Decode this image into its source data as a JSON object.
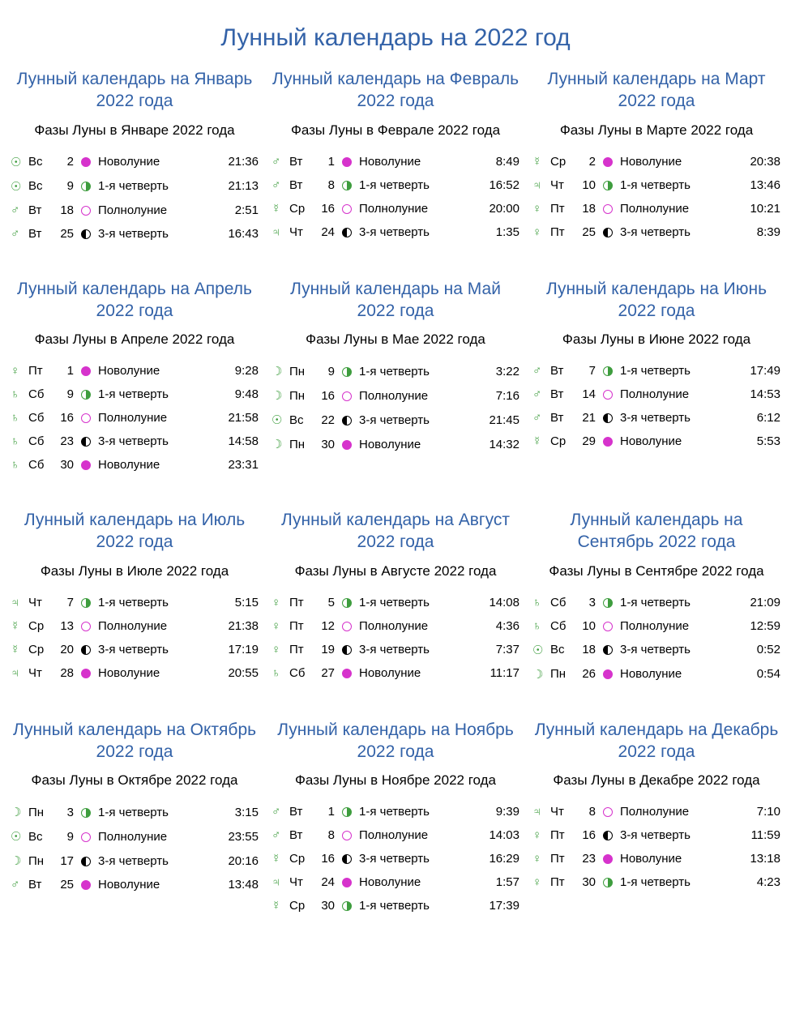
{
  "title": "Лунный календарь на 2022 год",
  "phaseKinds": {
    "new": {
      "label": "Новолуние",
      "cls": "new"
    },
    "fq": {
      "label": "1-я четверть",
      "cls": "fq"
    },
    "full": {
      "label": "Полнолуние",
      "cls": "full"
    },
    "lq": {
      "label": "3-я четверть",
      "cls": "lq"
    }
  },
  "colors": {
    "heading": "#3362a8",
    "symbol": "#3e9d3e",
    "newMoon": "#d633cc",
    "text": "#000000",
    "bg": "#ffffff"
  },
  "months": [
    {
      "title": "Лунный календарь на Январь 2022 года",
      "sub": "Фазы Луны в Январе 2022 года",
      "rows": [
        {
          "sym": "☉",
          "dow": "Вс",
          "day": "2",
          "phase": "new",
          "time": "21:36"
        },
        {
          "sym": "☉",
          "dow": "Вс",
          "day": "9",
          "phase": "fq",
          "time": "21:13"
        },
        {
          "sym": "♂",
          "dow": "Вт",
          "day": "18",
          "phase": "full",
          "time": "2:51"
        },
        {
          "sym": "♂",
          "dow": "Вт",
          "day": "25",
          "phase": "lq",
          "time": "16:43"
        }
      ]
    },
    {
      "title": "Лунный календарь на Февраль 2022 года",
      "sub": "Фазы Луны в Феврале 2022 года",
      "rows": [
        {
          "sym": "♂",
          "dow": "Вт",
          "day": "1",
          "phase": "new",
          "time": "8:49"
        },
        {
          "sym": "♂",
          "dow": "Вт",
          "day": "8",
          "phase": "fq",
          "time": "16:52"
        },
        {
          "sym": "☿",
          "dow": "Ср",
          "day": "16",
          "phase": "full",
          "time": "20:00"
        },
        {
          "sym": "♃",
          "dow": "Чт",
          "day": "24",
          "phase": "lq",
          "time": "1:35"
        }
      ]
    },
    {
      "title": "Лунный календарь на Март 2022 года",
      "sub": "Фазы Луны в Марте 2022 года",
      "rows": [
        {
          "sym": "☿",
          "dow": "Ср",
          "day": "2",
          "phase": "new",
          "time": "20:38"
        },
        {
          "sym": "♃",
          "dow": "Чт",
          "day": "10",
          "phase": "fq",
          "time": "13:46"
        },
        {
          "sym": "♀",
          "dow": "Пт",
          "day": "18",
          "phase": "full",
          "time": "10:21"
        },
        {
          "sym": "♀",
          "dow": "Пт",
          "day": "25",
          "phase": "lq",
          "time": "8:39"
        }
      ]
    },
    {
      "title": "Лунный календарь на Апрель 2022 года",
      "sub": "Фазы Луны в Апреле 2022 года",
      "rows": [
        {
          "sym": "♀",
          "dow": "Пт",
          "day": "1",
          "phase": "new",
          "time": "9:28"
        },
        {
          "sym": "♄",
          "dow": "Сб",
          "day": "9",
          "phase": "fq",
          "time": "9:48"
        },
        {
          "sym": "♄",
          "dow": "Сб",
          "day": "16",
          "phase": "full",
          "time": "21:58"
        },
        {
          "sym": "♄",
          "dow": "Сб",
          "day": "23",
          "phase": "lq",
          "time": "14:58"
        },
        {
          "sym": "♄",
          "dow": "Сб",
          "day": "30",
          "phase": "new",
          "time": "23:31"
        }
      ]
    },
    {
      "title": "Лунный календарь на Май 2022 года",
      "sub": "Фазы Луны в Мае 2022 года",
      "rows": [
        {
          "sym": "☽",
          "dow": "Пн",
          "day": "9",
          "phase": "fq",
          "time": "3:22"
        },
        {
          "sym": "☽",
          "dow": "Пн",
          "day": "16",
          "phase": "full",
          "time": "7:16"
        },
        {
          "sym": "☉",
          "dow": "Вс",
          "day": "22",
          "phase": "lq",
          "time": "21:45"
        },
        {
          "sym": "☽",
          "dow": "Пн",
          "day": "30",
          "phase": "new",
          "time": "14:32"
        }
      ]
    },
    {
      "title": "Лунный календарь на Июнь 2022 года",
      "sub": "Фазы Луны в Июне 2022 года",
      "rows": [
        {
          "sym": "♂",
          "dow": "Вт",
          "day": "7",
          "phase": "fq",
          "time": "17:49"
        },
        {
          "sym": "♂",
          "dow": "Вт",
          "day": "14",
          "phase": "full",
          "time": "14:53"
        },
        {
          "sym": "♂",
          "dow": "Вт",
          "day": "21",
          "phase": "lq",
          "time": "6:12"
        },
        {
          "sym": "☿",
          "dow": "Ср",
          "day": "29",
          "phase": "new",
          "time": "5:53"
        }
      ]
    },
    {
      "title": "Лунный календарь на Июль 2022 года",
      "sub": "Фазы Луны в Июле 2022 года",
      "rows": [
        {
          "sym": "♃",
          "dow": "Чт",
          "day": "7",
          "phase": "fq",
          "time": "5:15"
        },
        {
          "sym": "☿",
          "dow": "Ср",
          "day": "13",
          "phase": "full",
          "time": "21:38"
        },
        {
          "sym": "☿",
          "dow": "Ср",
          "day": "20",
          "phase": "lq",
          "time": "17:19"
        },
        {
          "sym": "♃",
          "dow": "Чт",
          "day": "28",
          "phase": "new",
          "time": "20:55"
        }
      ]
    },
    {
      "title": "Лунный календарь на Август 2022 года",
      "sub": "Фазы Луны в Августе 2022 года",
      "rows": [
        {
          "sym": "♀",
          "dow": "Пт",
          "day": "5",
          "phase": "fq",
          "time": "14:08"
        },
        {
          "sym": "♀",
          "dow": "Пт",
          "day": "12",
          "phase": "full",
          "time": "4:36"
        },
        {
          "sym": "♀",
          "dow": "Пт",
          "day": "19",
          "phase": "lq",
          "time": "7:37"
        },
        {
          "sym": "♄",
          "dow": "Сб",
          "day": "27",
          "phase": "new",
          "time": "11:17"
        }
      ]
    },
    {
      "title": "Лунный календарь на Сентябрь 2022 года",
      "sub": "Фазы Луны в Сентябре 2022 года",
      "rows": [
        {
          "sym": "♄",
          "dow": "Сб",
          "day": "3",
          "phase": "fq",
          "time": "21:09"
        },
        {
          "sym": "♄",
          "dow": "Сб",
          "day": "10",
          "phase": "full",
          "time": "12:59"
        },
        {
          "sym": "☉",
          "dow": "Вс",
          "day": "18",
          "phase": "lq",
          "time": "0:52"
        },
        {
          "sym": "☽",
          "dow": "Пн",
          "day": "26",
          "phase": "new",
          "time": "0:54"
        }
      ]
    },
    {
      "title": "Лунный календарь на Октябрь 2022 года",
      "sub": "Фазы Луны в Октябре 2022 года",
      "rows": [
        {
          "sym": "☽",
          "dow": "Пн",
          "day": "3",
          "phase": "fq",
          "time": "3:15"
        },
        {
          "sym": "☉",
          "dow": "Вс",
          "day": "9",
          "phase": "full",
          "time": "23:55"
        },
        {
          "sym": "☽",
          "dow": "Пн",
          "day": "17",
          "phase": "lq",
          "time": "20:16"
        },
        {
          "sym": "♂",
          "dow": "Вт",
          "day": "25",
          "phase": "new",
          "time": "13:48"
        }
      ]
    },
    {
      "title": "Лунный календарь на Ноябрь 2022 года",
      "sub": "Фазы Луны в Ноябре 2022 года",
      "rows": [
        {
          "sym": "♂",
          "dow": "Вт",
          "day": "1",
          "phase": "fq",
          "time": "9:39"
        },
        {
          "sym": "♂",
          "dow": "Вт",
          "day": "8",
          "phase": "full",
          "time": "14:03"
        },
        {
          "sym": "☿",
          "dow": "Ср",
          "day": "16",
          "phase": "lq",
          "time": "16:29"
        },
        {
          "sym": "♃",
          "dow": "Чт",
          "day": "24",
          "phase": "new",
          "time": "1:57"
        },
        {
          "sym": "☿",
          "dow": "Ср",
          "day": "30",
          "phase": "fq",
          "time": "17:39"
        }
      ]
    },
    {
      "title": "Лунный календарь на Декабрь 2022 года",
      "sub": "Фазы Луны в Декабре 2022 года",
      "rows": [
        {
          "sym": "♃",
          "dow": "Чт",
          "day": "8",
          "phase": "full",
          "time": "7:10"
        },
        {
          "sym": "♀",
          "dow": "Пт",
          "day": "16",
          "phase": "lq",
          "time": "11:59"
        },
        {
          "sym": "♀",
          "dow": "Пт",
          "day": "23",
          "phase": "new",
          "time": "13:18"
        },
        {
          "sym": "♀",
          "dow": "Пт",
          "day": "30",
          "phase": "fq",
          "time": "4:23"
        }
      ]
    }
  ]
}
